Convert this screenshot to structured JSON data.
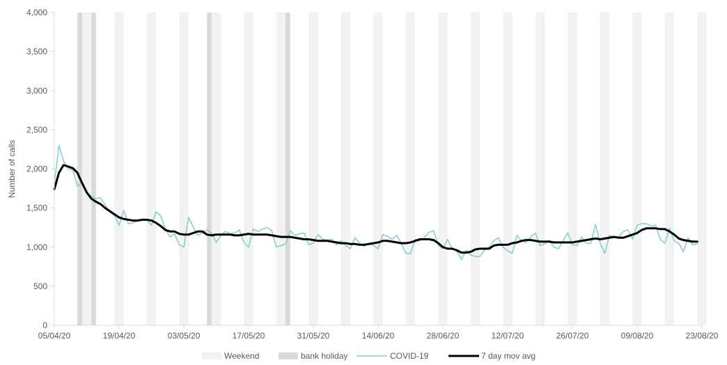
{
  "chart_data": {
    "type": "line",
    "ylabel": "Number of calls",
    "xlabel": "",
    "ylim": [
      0,
      4000
    ],
    "yticks": [
      "0",
      "500",
      "1,000",
      "1,500",
      "2,000",
      "2,500",
      "3,000",
      "3,500",
      "4,000"
    ],
    "ytick_values": [
      0,
      500,
      1000,
      1500,
      2000,
      2500,
      3000,
      3500,
      4000
    ],
    "xlim": [
      "2020-04-05",
      "2020-08-23"
    ],
    "xticks": [
      "05/04/20",
      "19/04/20",
      "03/05/20",
      "17/05/20",
      "31/05/20",
      "14/06/20",
      "28/06/20",
      "12/07/20",
      "26/07/20",
      "09/08/20",
      "23/08/20"
    ],
    "xtick_dates": [
      "2020-04-05",
      "2020-04-19",
      "2020-05-03",
      "2020-05-17",
      "2020-05-31",
      "2020-06-14",
      "2020-06-28",
      "2020-07-12",
      "2020-07-26",
      "2020-08-09",
      "2020-08-23"
    ],
    "grid": false,
    "legend_position": "bottom",
    "legend": [
      {
        "label": "Weekend",
        "kind": "band",
        "color": "#f2f2f2"
      },
      {
        "label": "bank holiday",
        "kind": "band",
        "color": "#d9d9d9"
      },
      {
        "label": "COVID-19",
        "kind": "line",
        "color": "#7ececa"
      },
      {
        "label": "7 day mov avg",
        "kind": "line",
        "color": "#000000"
      }
    ],
    "weekend_band_starts": [
      "2020-04-11",
      "2020-04-18",
      "2020-04-25",
      "2020-05-02",
      "2020-05-09",
      "2020-05-16",
      "2020-05-23",
      "2020-05-30",
      "2020-06-06",
      "2020-06-13",
      "2020-06-20",
      "2020-06-27",
      "2020-07-04",
      "2020-07-11",
      "2020-07-18",
      "2020-07-25",
      "2020-08-01",
      "2020-08-08",
      "2020-08-15",
      "2020-08-22"
    ],
    "bank_holidays": [
      "2020-04-10",
      "2020-04-13",
      "2020-05-08",
      "2020-05-25"
    ],
    "series": [
      {
        "name": "COVID-19",
        "color": "#7ececa",
        "start_date": "2020-04-05",
        "values": [
          1810,
          2300,
          2100,
          2000,
          1990,
          1780,
          1820,
          1700,
          1650,
          1620,
          1630,
          1540,
          1450,
          1400,
          1280,
          1470,
          1300,
          1310,
          1340,
          1350,
          1350,
          1280,
          1450,
          1400,
          1230,
          1130,
          1170,
          1030,
          1000,
          1380,
          1260,
          1150,
          1180,
          1220,
          1180,
          1060,
          1150,
          1200,
          1170,
          1180,
          1220,
          1060,
          1000,
          1230,
          1200,
          1230,
          1250,
          1210,
          1000,
          1020,
          1040,
          1210,
          1150,
          1170,
          1180,
          1030,
          1050,
          1160,
          1100,
          1090,
          1100,
          1030,
          1080,
          1020,
          980,
          1120,
          1050,
          1010,
          1050,
          1020,
          980,
          1160,
          1140,
          1100,
          1150,
          1050,
          920,
          920,
          1100,
          1080,
          1120,
          1190,
          1210,
          1020,
          980,
          1100,
          980,
          950,
          840,
          960,
          900,
          880,
          880,
          960,
          1000,
          1080,
          1120,
          1000,
          950,
          920,
          1150,
          1080,
          1060,
          1130,
          1180,
          1020,
          1040,
          1090,
          1000,
          980,
          1080,
          1180,
          1030,
          1020,
          1130,
          1050,
          1050,
          1290,
          1050,
          920,
          1150,
          1130,
          1130,
          1200,
          1220,
          1100,
          1280,
          1300,
          1300,
          1270,
          1280,
          1100,
          1050,
          1240,
          1080,
          1050,
          940,
          1120,
          1030,
          1040
        ]
      },
      {
        "name": "7 day mov avg",
        "color": "#000000",
        "start_date": "2020-04-05",
        "values": [
          1740,
          1950,
          2050,
          2030,
          2010,
          1950,
          1820,
          1700,
          1620,
          1580,
          1550,
          1500,
          1460,
          1420,
          1380,
          1360,
          1350,
          1340,
          1340,
          1350,
          1350,
          1340,
          1310,
          1270,
          1220,
          1200,
          1200,
          1170,
          1160,
          1160,
          1180,
          1200,
          1200,
          1160,
          1150,
          1160,
          1160,
          1160,
          1160,
          1150,
          1150,
          1160,
          1170,
          1160,
          1160,
          1160,
          1160,
          1150,
          1140,
          1130,
          1130,
          1130,
          1120,
          1110,
          1100,
          1100,
          1090,
          1080,
          1080,
          1080,
          1070,
          1060,
          1050,
          1050,
          1040,
          1040,
          1030,
          1030,
          1040,
          1050,
          1060,
          1080,
          1080,
          1070,
          1060,
          1050,
          1050,
          1060,
          1080,
          1100,
          1100,
          1100,
          1090,
          1050,
          1000,
          980,
          980,
          960,
          930,
          930,
          940,
          970,
          980,
          980,
          980,
          1020,
          1030,
          1030,
          1030,
          1050,
          1060,
          1080,
          1090,
          1090,
          1080,
          1070,
          1070,
          1070,
          1060,
          1060,
          1060,
          1060,
          1060,
          1070,
          1080,
          1090,
          1100,
          1110,
          1100,
          1110,
          1120,
          1130,
          1120,
          1120,
          1140,
          1160,
          1180,
          1220,
          1240,
          1240,
          1240,
          1230,
          1230,
          1200,
          1160,
          1110,
          1090,
          1080,
          1070,
          1070
        ]
      }
    ]
  }
}
